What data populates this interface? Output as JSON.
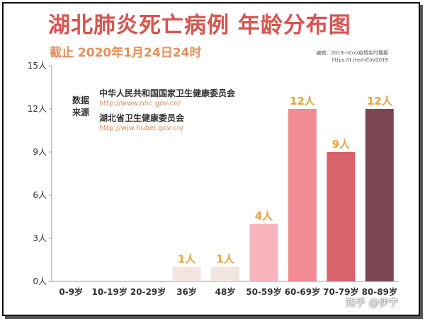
{
  "chart_data": {
    "type": "bar",
    "title": "湖北肺炎死亡病例 年龄分布图",
    "subtitle": "截止 2020年1月24日24时",
    "categories": [
      "0-9岁",
      "10-19岁",
      "20-29岁",
      "36岁",
      "48岁",
      "50-59岁",
      "60-69岁",
      "70-79岁",
      "80-89岁"
    ],
    "values": [
      0,
      0,
      0,
      1,
      1,
      4,
      12,
      9,
      12
    ],
    "data_labels": [
      "",
      "",
      "",
      "1人",
      "1人",
      "4人",
      "12人",
      "9人",
      "12人"
    ],
    "colors": [
      "#f2e4df",
      "#f2e4df",
      "#f2e4df",
      "#f2e4df",
      "#f2e4df",
      "#f7b4bc",
      "#f08a93",
      "#d8636d",
      "#7d4655"
    ],
    "y_ticks": [
      "0人",
      "3人",
      "6人",
      "9人",
      "12人",
      "15人"
    ],
    "y_tick_values": [
      0,
      3,
      6,
      9,
      12,
      15
    ],
    "ylim": [
      0,
      15
    ],
    "xlabel": "",
    "ylabel": "",
    "grid": false
  },
  "sources": {
    "label": "数据来源",
    "items": [
      {
        "name": "中华人民共和国国家卫生健康委员会",
        "url": "http://www.nhc.gov.cn/"
      },
      {
        "name": "湖北省卫生健康委员会",
        "url": "http://wjw.hubei.gov.cn/"
      }
    ]
  },
  "credit": {
    "line1": "编辑：2019-nCoV疫情实时播报",
    "line2": "https://t.me/nCoV2019"
  },
  "watermark": "知乎 @伊宁"
}
